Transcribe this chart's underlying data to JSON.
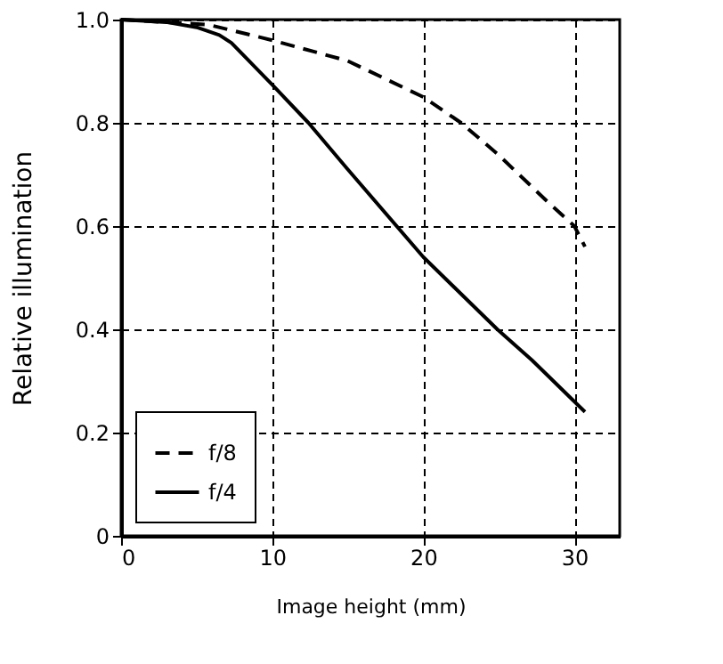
{
  "chart_data": {
    "type": "line",
    "xlabel": "Image height (mm)",
    "ylabel": "Relative illumination",
    "xlim": [
      0,
      33
    ],
    "ylim": [
      0,
      1.0
    ],
    "xticks": [
      0,
      10,
      20,
      30
    ],
    "yticks": [
      {
        "value": 0,
        "label": "0"
      },
      0.2,
      0.4,
      0.6,
      0.8,
      {
        "value": 1.0,
        "label": "1.0"
      }
    ],
    "grid": true,
    "legend": "bottom left",
    "series": [
      {
        "name": "f/8",
        "color": "#000000",
        "line_style": "dashed",
        "x": [
          0,
          3,
          5.8,
          10,
          15,
          20,
          22.5,
          24.9,
          28.3,
          30,
          30.7
        ],
        "values": [
          1.0,
          0.995,
          0.99,
          0.96,
          0.92,
          0.85,
          0.8,
          0.74,
          0.645,
          0.6,
          0.56
        ]
      },
      {
        "name": "f/4",
        "color": "#000000",
        "line_style": "solid",
        "x": [
          0,
          3,
          5,
          6.5,
          7.3,
          10,
          12.4,
          15,
          20,
          24.9,
          27.2,
          30.7
        ],
        "values": [
          1.0,
          0.995,
          0.985,
          0.97,
          0.955,
          0.874,
          0.8,
          0.71,
          0.54,
          0.4,
          0.34,
          0.24
        ]
      }
    ]
  }
}
